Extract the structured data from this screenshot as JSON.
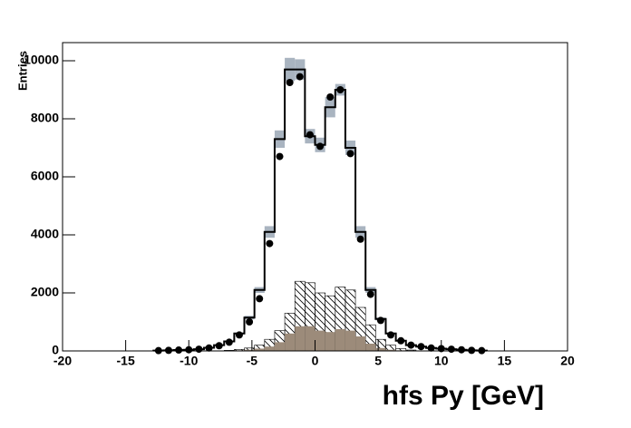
{
  "chart_data": {
    "type": "histogram",
    "x_label": "hfs Py [GeV]",
    "y_label": "Entries",
    "bins": [
      -12.8,
      -12.0,
      -11.2,
      -10.4,
      -9.6,
      -8.8,
      -8.0,
      -7.2,
      -6.4,
      -5.6,
      -4.8,
      -4.0,
      -3.2,
      -2.4,
      -1.6,
      -0.8,
      0,
      0.8,
      1.6,
      2.4,
      3.2,
      4.0,
      4.8,
      5.6,
      6.4,
      7.2,
      8.0,
      8.8,
      9.6,
      10.4,
      11.2,
      12.0,
      12.8,
      13.6
    ],
    "xlim": [
      -20,
      20
    ],
    "xticks": [
      -20,
      -15,
      -10,
      -5,
      0,
      5,
      10,
      15,
      20
    ],
    "ylim": [
      0,
      10625
    ],
    "yticks": [
      0,
      2000,
      4000,
      6000,
      8000,
      10000
    ],
    "series": [
      {
        "style": "outline",
        "color": "#ffffff",
        "edge_color": "#000000",
        "error_color": "#a9b4c0",
        "values": [
          10,
          20,
          30,
          40,
          60,
          110,
          200,
          330,
          600,
          1150,
          2100,
          4100,
          7300,
          9700,
          9700,
          7400,
          7100,
          8400,
          9000,
          7000,
          4100,
          2100,
          1100,
          600,
          350,
          200,
          150,
          100,
          80,
          60,
          40,
          20,
          10
        ],
        "errors": [
          0,
          0,
          0,
          0,
          0,
          0,
          0,
          0,
          30,
          60,
          100,
          200,
          300,
          400,
          350,
          250,
          250,
          350,
          200,
          250,
          200,
          100,
          50,
          30,
          0,
          0,
          0,
          0,
          0,
          0,
          0,
          0,
          0
        ]
      },
      {
        "style": "hatch",
        "color": "#000000",
        "values": [
          0,
          0,
          0,
          0,
          0,
          0,
          0,
          20,
          50,
          100,
          200,
          400,
          700,
          1300,
          2400,
          2350,
          2000,
          1900,
          2200,
          2100,
          1500,
          900,
          400,
          200,
          80,
          30,
          0,
          0,
          0,
          0,
          0,
          0,
          0
        ]
      },
      {
        "style": "fill",
        "color": "#9c8b7a",
        "values": [
          0,
          0,
          0,
          0,
          0,
          0,
          0,
          0,
          20,
          40,
          80,
          150,
          300,
          600,
          850,
          850,
          700,
          650,
          750,
          700,
          500,
          250,
          100,
          40,
          20,
          0,
          0,
          0,
          0,
          0,
          0,
          0,
          0
        ]
      },
      {
        "style": "points",
        "color": "#000000",
        "values": [
          10,
          20,
          30,
          40,
          60,
          100,
          180,
          300,
          550,
          1000,
          1800,
          3700,
          6700,
          9250,
          9450,
          7450,
          7050,
          8750,
          9000,
          6800,
          3850,
          1950,
          1050,
          550,
          350,
          200,
          150,
          100,
          80,
          60,
          40,
          20,
          10
        ]
      }
    ]
  }
}
